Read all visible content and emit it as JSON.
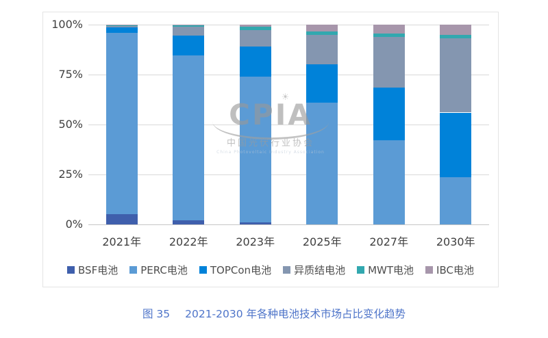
{
  "chart": {
    "y_ticks": [
      "100%",
      "75%",
      "50%",
      "25%",
      "0%"
    ]
  },
  "chart_data": {
    "type": "bar",
    "stacked": true,
    "title": "",
    "xlabel": "",
    "ylabel": "",
    "ylim": [
      0,
      100
    ],
    "grid": true,
    "legend_position": "bottom",
    "categories": [
      "2021年",
      "2022年",
      "2023年",
      "2025年",
      "2027年",
      "2030年"
    ],
    "series": [
      {
        "name": "BSF电池",
        "color": "#3f5fac",
        "values": [
          5,
          2,
          1,
          0,
          0,
          0
        ]
      },
      {
        "name": "PERC电池",
        "color": "#5b9bd5",
        "values": [
          91,
          82.5,
          73,
          61,
          42,
          23.5
        ]
      },
      {
        "name": "TOPCon电池",
        "color": "#0082d9",
        "values": [
          2.5,
          10,
          15,
          19,
          26.5,
          32.5
        ]
      },
      {
        "name": "异质结电池",
        "color": "#8496b0",
        "values": [
          0.7,
          4.5,
          8.2,
          15,
          25.5,
          37
        ]
      },
      {
        "name": "MWT电池",
        "color": "#32a8af",
        "values": [
          0.3,
          0.7,
          1.8,
          1.5,
          1.5,
          2
        ]
      },
      {
        "name": "IBC电池",
        "color": "#a796ab",
        "values": [
          0.5,
          0.3,
          1,
          3.5,
          4.5,
          5
        ]
      }
    ]
  },
  "watermark": {
    "acronym": "CPIA",
    "name_cn": "中国光伏行业协会",
    "name_en": "China Photovoltaic Industry Association"
  },
  "caption": {
    "figure_label": "图 35",
    "text": "2021-2030 年各种电池技术市场占比变化趋势"
  }
}
